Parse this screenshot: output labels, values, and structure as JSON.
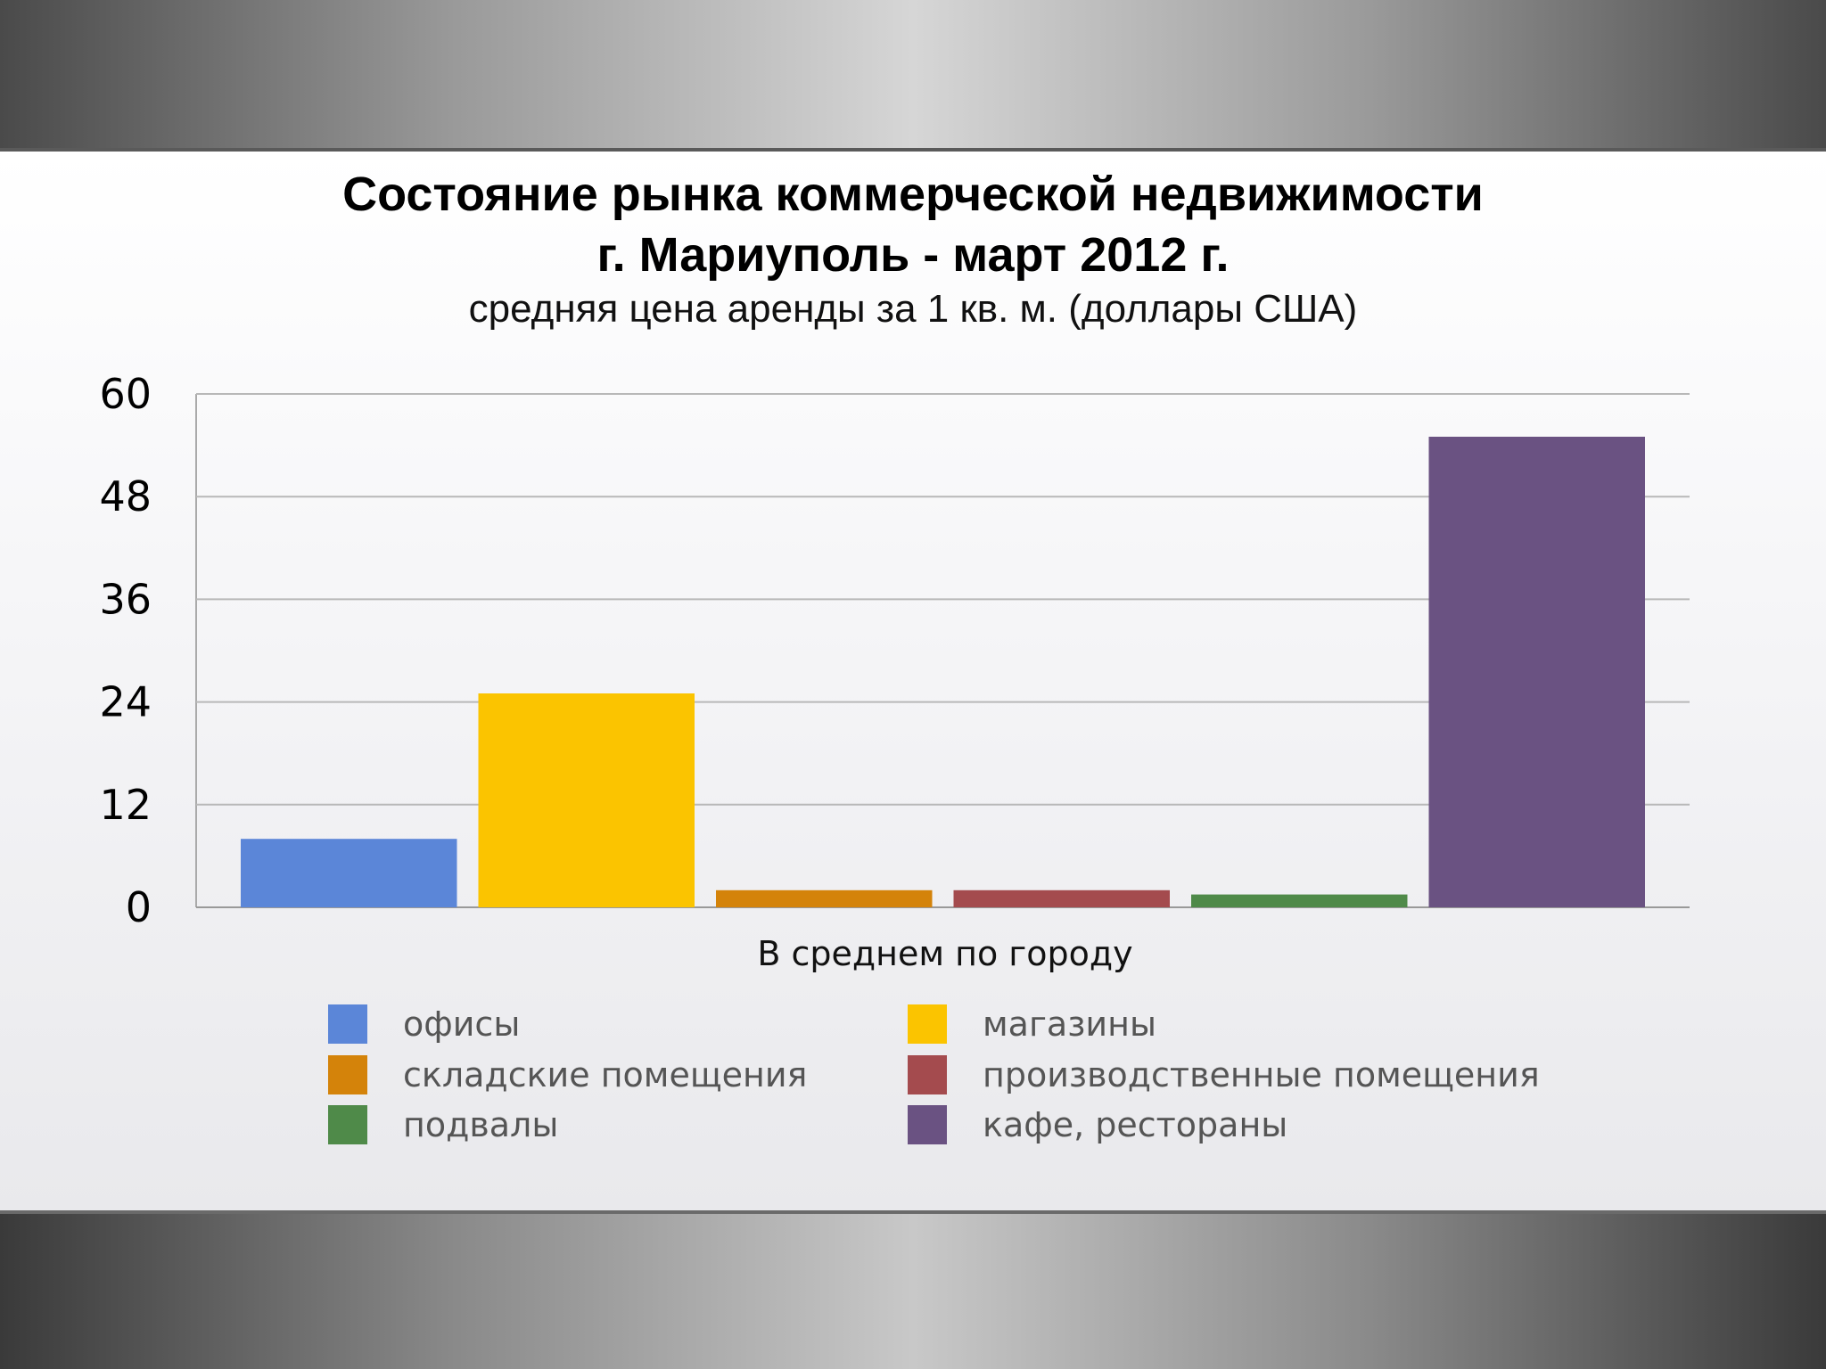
{
  "slide": {
    "title_line1": "Состояние рынка коммерческой недвижимости",
    "title_line2": "г. Мариуполь - март 2012 г.",
    "subtitle": "средняя цена аренды за 1 кв. м. (доллары США)"
  },
  "chart_data": {
    "type": "bar",
    "title": "Состояние рынка коммерческой недвижимости г. Мариуполь - март 2012 г.",
    "subtitle": "средняя цена аренды за 1 кв. м. (доллары США)",
    "categories": [
      "В среднем по городу"
    ],
    "xlabel": "В среднем по городу",
    "ylabel": "",
    "ylim": [
      0,
      60
    ],
    "yticks": [
      "0",
      "12",
      "24",
      "36",
      "48",
      "60"
    ],
    "grid": true,
    "legend_position": "bottom",
    "series": [
      {
        "name": "офисы",
        "values": [
          8
        ],
        "color": "#5b86d8"
      },
      {
        "name": "магазины",
        "values": [
          25
        ],
        "color": "#fbc400"
      },
      {
        "name": "складские помещения",
        "values": [
          2
        ],
        "color": "#d4830a"
      },
      {
        "name": "производственные помещения",
        "values": [
          2
        ],
        "color": "#a44b4e"
      },
      {
        "name": "подвалы",
        "values": [
          1.5
        ],
        "color": "#4f8a49"
      },
      {
        "name": "кафе, рестораны",
        "values": [
          55
        ],
        "color": "#6a5282"
      }
    ]
  }
}
